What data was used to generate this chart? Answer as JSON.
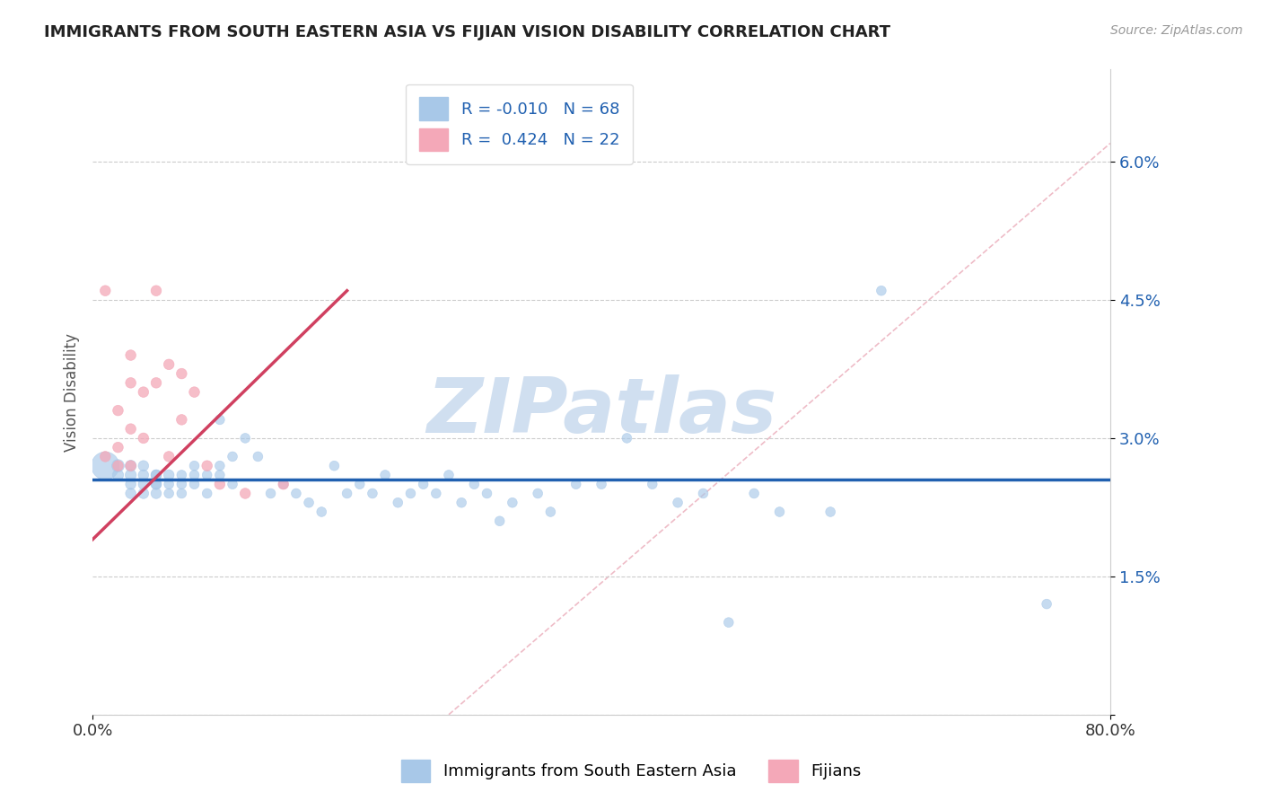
{
  "title": "IMMIGRANTS FROM SOUTH EASTERN ASIA VS FIJIAN VISION DISABILITY CORRELATION CHART",
  "source": "Source: ZipAtlas.com",
  "ylabel": "Vision Disability",
  "xlabel": "",
  "xlim": [
    0.0,
    0.8
  ],
  "ylim": [
    0.0,
    0.07
  ],
  "yticks": [
    0.0,
    0.015,
    0.03,
    0.045,
    0.06
  ],
  "ytick_labels": [
    "",
    "1.5%",
    "3.0%",
    "4.5%",
    "6.0%"
  ],
  "xticks": [
    0.0,
    0.8
  ],
  "xtick_labels": [
    "0.0%",
    "80.0%"
  ],
  "blue_R": -0.01,
  "blue_N": 68,
  "pink_R": 0.424,
  "pink_N": 22,
  "blue_color": "#a8c8e8",
  "pink_color": "#f4a8b8",
  "blue_line_color": "#2060b0",
  "pink_line_color": "#d04060",
  "watermark": "ZIPatlas",
  "watermark_color": "#d0dff0",
  "legend_label_blue": "Immigrants from South Eastern Asia",
  "legend_label_pink": "Fijians",
  "blue_scatter_x": [
    0.01,
    0.02,
    0.02,
    0.03,
    0.03,
    0.03,
    0.03,
    0.04,
    0.04,
    0.04,
    0.04,
    0.05,
    0.05,
    0.05,
    0.05,
    0.05,
    0.06,
    0.06,
    0.06,
    0.07,
    0.07,
    0.07,
    0.08,
    0.08,
    0.08,
    0.09,
    0.09,
    0.1,
    0.1,
    0.1,
    0.11,
    0.11,
    0.12,
    0.13,
    0.14,
    0.15,
    0.16,
    0.17,
    0.18,
    0.19,
    0.2,
    0.21,
    0.22,
    0.23,
    0.24,
    0.25,
    0.26,
    0.27,
    0.28,
    0.29,
    0.3,
    0.31,
    0.32,
    0.33,
    0.35,
    0.36,
    0.38,
    0.4,
    0.42,
    0.44,
    0.46,
    0.48,
    0.5,
    0.52,
    0.54,
    0.58,
    0.62,
    0.75
  ],
  "blue_scatter_y": [
    0.027,
    0.027,
    0.026,
    0.027,
    0.026,
    0.025,
    0.024,
    0.026,
    0.025,
    0.027,
    0.024,
    0.026,
    0.025,
    0.024,
    0.026,
    0.025,
    0.026,
    0.025,
    0.024,
    0.026,
    0.025,
    0.024,
    0.026,
    0.027,
    0.025,
    0.024,
    0.026,
    0.027,
    0.026,
    0.032,
    0.028,
    0.025,
    0.03,
    0.028,
    0.024,
    0.025,
    0.024,
    0.023,
    0.022,
    0.027,
    0.024,
    0.025,
    0.024,
    0.026,
    0.023,
    0.024,
    0.025,
    0.024,
    0.026,
    0.023,
    0.025,
    0.024,
    0.021,
    0.023,
    0.024,
    0.022,
    0.025,
    0.025,
    0.03,
    0.025,
    0.023,
    0.024,
    0.01,
    0.024,
    0.022,
    0.022,
    0.046,
    0.012
  ],
  "blue_scatter_size": [
    500,
    100,
    80,
    80,
    80,
    70,
    70,
    70,
    70,
    70,
    70,
    70,
    70,
    70,
    70,
    70,
    70,
    60,
    60,
    60,
    60,
    60,
    60,
    60,
    60,
    60,
    60,
    60,
    60,
    60,
    60,
    60,
    60,
    60,
    60,
    60,
    60,
    60,
    60,
    60,
    60,
    60,
    60,
    60,
    60,
    60,
    60,
    60,
    60,
    60,
    60,
    60,
    60,
    60,
    60,
    60,
    60,
    60,
    60,
    60,
    60,
    60,
    60,
    60,
    60,
    60,
    60,
    60
  ],
  "pink_scatter_x": [
    0.01,
    0.01,
    0.02,
    0.02,
    0.02,
    0.03,
    0.03,
    0.03,
    0.03,
    0.04,
    0.04,
    0.05,
    0.05,
    0.06,
    0.06,
    0.07,
    0.07,
    0.08,
    0.09,
    0.1,
    0.12,
    0.15
  ],
  "pink_scatter_y": [
    0.028,
    0.046,
    0.027,
    0.033,
    0.029,
    0.027,
    0.031,
    0.036,
    0.039,
    0.03,
    0.035,
    0.046,
    0.036,
    0.028,
    0.038,
    0.032,
    0.037,
    0.035,
    0.027,
    0.025,
    0.024,
    0.025
  ],
  "pink_scatter_size": [
    70,
    70,
    70,
    70,
    70,
    70,
    70,
    70,
    70,
    70,
    70,
    70,
    70,
    70,
    70,
    70,
    70,
    70,
    70,
    70,
    70,
    70
  ],
  "blue_line_y_intercept": 0.0255,
  "blue_line_slope": 0.0,
  "pink_line_x0": 0.0,
  "pink_line_y0": 0.019,
  "pink_line_x1": 0.2,
  "pink_line_y1": 0.046,
  "diag_line_x0": 0.28,
  "diag_line_y0": 0.0,
  "diag_line_x1": 0.8,
  "diag_line_y1": 0.062
}
